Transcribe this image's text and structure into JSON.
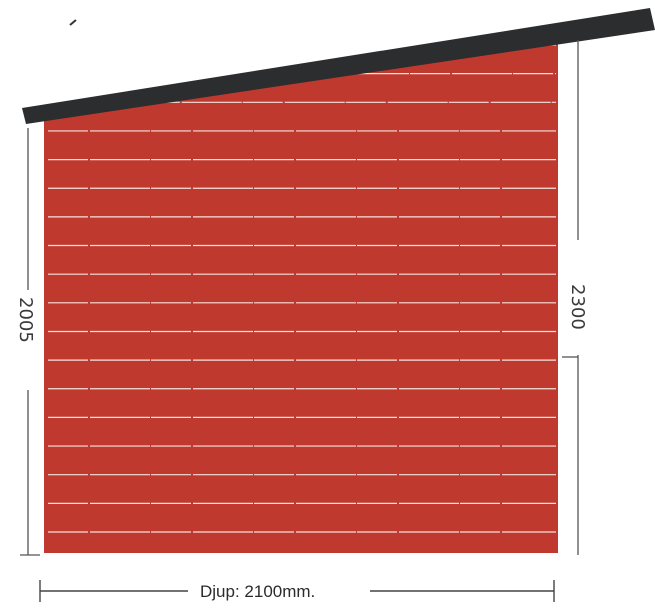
{
  "drawing": {
    "depth_label": "Djup: 2100mm.",
    "left_height_label": "2005",
    "right_height_label": "2300",
    "plank_count": 18,
    "colors": {
      "wall": "#c0392f",
      "roof": "#2b2d2f",
      "plank_line": "#f2e2dc",
      "dimension_line": "#555555"
    }
  }
}
